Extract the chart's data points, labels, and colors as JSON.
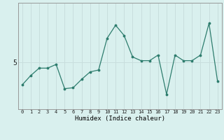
{
  "x": [
    0,
    1,
    2,
    3,
    4,
    5,
    6,
    7,
    8,
    9,
    10,
    11,
    12,
    13,
    14,
    15,
    16,
    17,
    18,
    19,
    20,
    21,
    22,
    23
  ],
  "y": [
    3.8,
    4.3,
    4.7,
    4.7,
    4.9,
    3.6,
    3.65,
    4.1,
    4.5,
    4.6,
    6.3,
    7.0,
    6.45,
    5.3,
    5.1,
    5.1,
    5.4,
    3.3,
    5.4,
    5.1,
    5.1,
    5.4,
    7.1,
    4.0
  ],
  "line_color": "#2e7d6e",
  "bg_color": "#d9f0ee",
  "grid_color": "#c8dedd",
  "axis_color": "#888888",
  "xlabel": "Humidex (Indice chaleur)",
  "ytick_label": "5",
  "ytick_value": 5.0,
  "xlim": [
    -0.5,
    23.5
  ],
  "ylim": [
    2.5,
    8.2
  ],
  "figsize": [
    3.2,
    2.0
  ],
  "dpi": 100
}
